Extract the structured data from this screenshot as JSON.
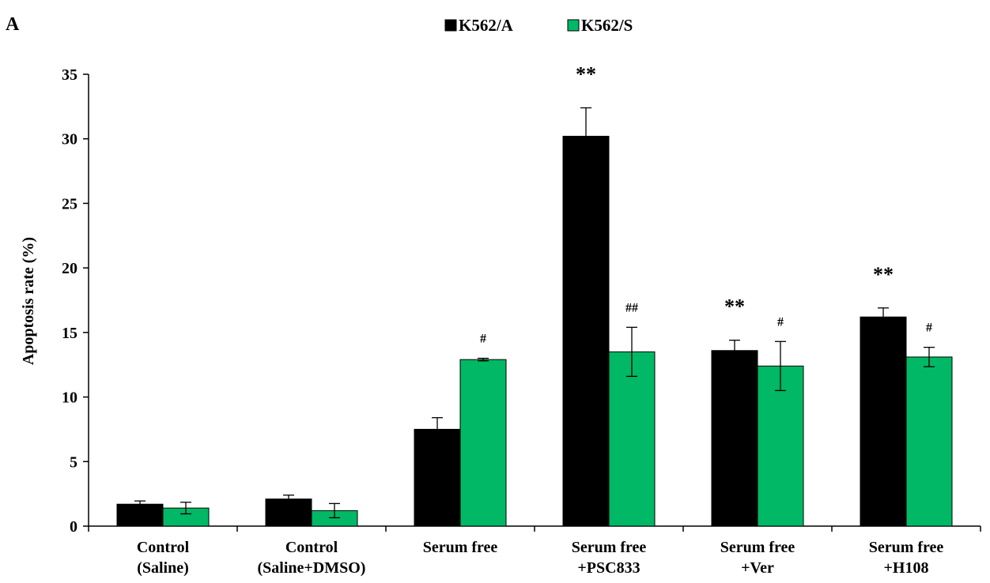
{
  "panel_label": "A",
  "chart_data": {
    "type": "bar",
    "title": "",
    "xlabel": "",
    "ylabel": "Apoptosis rate (%)",
    "ylim": [
      0,
      35
    ],
    "yticks": [
      0,
      5,
      10,
      15,
      20,
      25,
      30,
      35
    ],
    "grid": false,
    "legend_position": "top-center",
    "categories": [
      [
        "Control",
        "(Saline)"
      ],
      [
        "Control",
        "(Saline+DMSO)"
      ],
      [
        "Serum free"
      ],
      [
        "Serum free",
        "+PSC833"
      ],
      [
        "Serum free",
        "+Ver"
      ],
      [
        "Serum free",
        "+H108"
      ]
    ],
    "series": [
      {
        "name": "K562/A",
        "color": "#000000",
        "values": [
          1.7,
          2.1,
          7.5,
          30.2,
          13.6,
          16.2
        ],
        "errors": [
          0.25,
          0.3,
          0.9,
          2.2,
          0.8,
          0.7
        ],
        "annotations": [
          "",
          "",
          "",
          "**",
          "**",
          "**"
        ]
      },
      {
        "name": "K562/S",
        "color": "#00b865",
        "values": [
          1.4,
          1.2,
          12.9,
          13.5,
          12.4,
          13.1
        ],
        "errors": [
          0.45,
          0.55,
          0.1,
          1.9,
          1.9,
          0.75
        ],
        "annotations": [
          "",
          "",
          "#",
          "##",
          "#",
          "#"
        ]
      }
    ]
  }
}
